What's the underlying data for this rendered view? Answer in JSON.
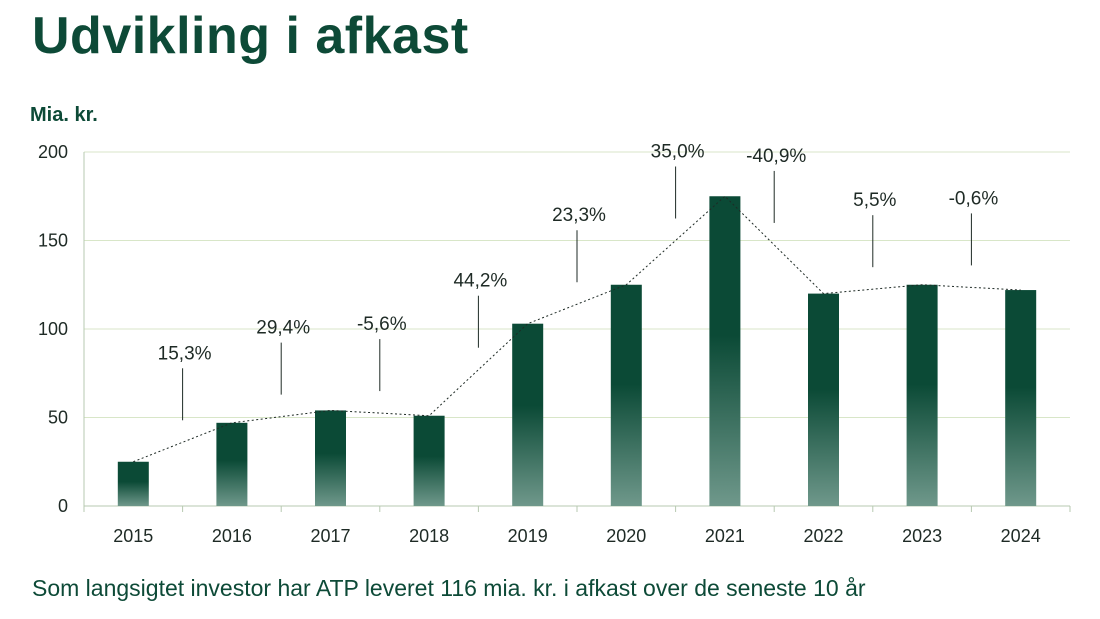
{
  "title": "Udvikling i afkast",
  "unit_label": "Mia. kr.",
  "footer": "Som langsigtet investor har ATP leveret 116 mia. kr. i afkast over de seneste 10 år",
  "colors": {
    "bar_top": "#0b4a36",
    "bar_bottom": "#6f988b",
    "title": "#0d4a37",
    "grid": "#d8e6c8"
  },
  "chart_data": {
    "type": "bar",
    "categories": [
      "2015",
      "2016",
      "2017",
      "2018",
      "2019",
      "2020",
      "2021",
      "2022",
      "2023",
      "2024"
    ],
    "values": [
      25,
      47,
      54,
      51,
      103,
      125,
      175,
      120,
      125,
      122
    ],
    "annotations": [
      "15,3%",
      "29,4%",
      "-5,6%",
      "44,2%",
      "23,3%",
      "35,0%",
      "-40,9%",
      "5,5%",
      "-0,6%"
    ],
    "yticks": [
      0,
      50,
      100,
      150,
      200
    ],
    "ylim": [
      0,
      200
    ],
    "ylabel": "Mia. kr.",
    "grid": true,
    "trend_line": "dotted"
  }
}
